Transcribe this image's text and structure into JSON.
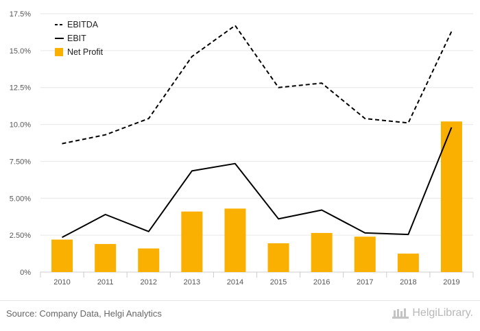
{
  "chart_data": {
    "type": "bar",
    "categories": [
      "2010",
      "2011",
      "2012",
      "2013",
      "2014",
      "2015",
      "2016",
      "2017",
      "2018",
      "2019"
    ],
    "series": [
      {
        "name": "Net Profit",
        "type": "bar",
        "color": "#f9b000",
        "values": [
          2.2,
          1.9,
          1.6,
          4.1,
          4.3,
          1.95,
          2.65,
          2.4,
          1.25,
          10.2
        ]
      },
      {
        "name": "EBIT",
        "type": "line",
        "style": "solid",
        "color": "#000000",
        "values": [
          2.35,
          3.9,
          2.75,
          6.85,
          7.35,
          3.6,
          4.2,
          2.65,
          2.55,
          9.8
        ]
      },
      {
        "name": "EBITDA",
        "type": "line",
        "style": "dashed",
        "color": "#000000",
        "values": [
          8.7,
          9.3,
          10.4,
          14.6,
          16.7,
          12.5,
          12.8,
          10.4,
          10.1,
          16.3
        ]
      }
    ],
    "yticks": [
      "0%",
      "2.50%",
      "5.00%",
      "7.50%",
      "10.0%",
      "12.5%",
      "15.0%",
      "17.5%"
    ],
    "ylim": [
      0,
      17.5
    ],
    "grid": true,
    "legend": "top-left"
  },
  "footer": {
    "source": "Source: Company Data, Helgi Analytics",
    "brand": "HelgiLibrary."
  }
}
